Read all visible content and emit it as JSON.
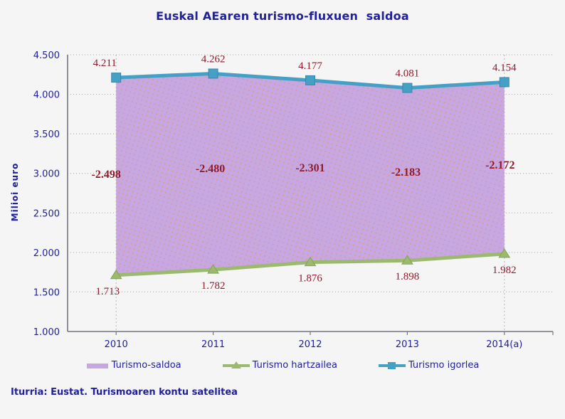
{
  "source": "Iturria: Eustat. Turismoaren kontu satelitea",
  "colors": {
    "background": "#f5f5f6",
    "axis_text": "#21219c",
    "data_label": "#8e1c2c",
    "axis_line": "#75757d",
    "gridline": "#d79fb8",
    "drop_line": "#c0aec2",
    "area_texture_dot": "#e2925f"
  },
  "chart_data": {
    "type": "area",
    "title": "Euskal AEaren turismo-fluxuen  saldoa",
    "ylabel": "Milioi euro",
    "categories": [
      "2010",
      "2011",
      "2012",
      "2013",
      "2014(a)"
    ],
    "ylim": [
      1000,
      4500
    ],
    "yticks": [
      {
        "v": 4500,
        "label": "4.500"
      },
      {
        "v": 4000,
        "label": "4.000"
      },
      {
        "v": 3500,
        "label": "3.500"
      },
      {
        "v": 3000,
        "label": "3.000"
      },
      {
        "v": 2500,
        "label": "2.500"
      },
      {
        "v": 2000,
        "label": "2.000"
      },
      {
        "v": 1500,
        "label": "1.500"
      },
      {
        "v": 1000,
        "label": "1.000"
      }
    ],
    "grid": "dotted horizontal",
    "legend_position": "bottom",
    "series": [
      {
        "name": "Turismo-saldoa",
        "type": "area-between",
        "color": "#c7a7e2",
        "values": [
          -2498,
          -2480,
          -2301,
          -2183,
          -2172
        ],
        "labels": [
          "-2.498",
          "-2.480",
          "-2.301",
          "-2.183",
          "-2.172"
        ]
      },
      {
        "name": "Turismo hartzailea",
        "type": "line",
        "marker": "triangle",
        "color": "#9cba6e",
        "values": [
          1713,
          1782,
          1876,
          1898,
          1982
        ],
        "labels": [
          "1.713",
          "1.782",
          "1.876",
          "1.898",
          "1.982"
        ]
      },
      {
        "name": "Turismo igorlea",
        "type": "line",
        "marker": "square",
        "color": "#45a0c5",
        "values": [
          4211,
          4262,
          4177,
          4081,
          4154
        ],
        "labels": [
          "4.211",
          "4.262",
          "4.177",
          "4.081",
          "4.154"
        ]
      }
    ]
  }
}
